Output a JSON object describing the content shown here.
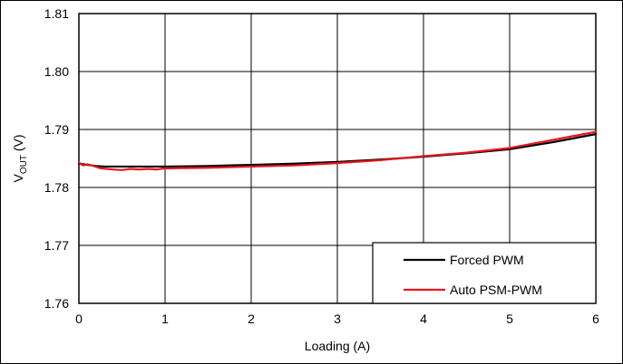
{
  "chart_data": {
    "type": "line",
    "xlabel": "Loading (A)",
    "ylabel": {
      "main": "V",
      "sub": "OUT",
      "unit": " (V)"
    },
    "xlim": [
      0,
      6
    ],
    "ylim": [
      1.76,
      1.81
    ],
    "x_ticks": [
      "0",
      "1",
      "2",
      "3",
      "4",
      "5",
      "6"
    ],
    "y_ticks": [
      "1.76",
      "1.77",
      "1.78",
      "1.79",
      "1.80",
      "1.81"
    ],
    "grid": true,
    "legend_position": "bottom-right",
    "series": [
      {
        "name": "Forced PWM",
        "color": "#000000",
        "x": [
          0,
          0.1,
          0.2,
          0.3,
          0.5,
          0.7,
          1.0,
          1.5,
          2.0,
          2.5,
          3.0,
          3.5,
          4.0,
          4.5,
          5.0,
          5.5,
          6.0
        ],
        "y": [
          1.7841,
          1.7839,
          1.7837,
          1.7836,
          1.7836,
          1.7836,
          1.7836,
          1.7837,
          1.7839,
          1.7841,
          1.7844,
          1.7848,
          1.7853,
          1.7859,
          1.7866,
          1.7878,
          1.7892
        ]
      },
      {
        "name": "Auto PSM-PWM",
        "color": "#e8141c",
        "x": [
          0,
          0.05,
          0.1,
          0.15,
          0.25,
          0.4,
          0.5,
          0.6,
          0.7,
          0.8,
          0.9,
          1.0,
          1.5,
          2.0,
          2.5,
          3.0,
          3.5,
          4.0,
          4.5,
          5.0,
          5.5,
          6.0
        ],
        "y": [
          1.7843,
          1.7838,
          1.784,
          1.7838,
          1.7833,
          1.7831,
          1.783,
          1.7832,
          1.7831,
          1.7832,
          1.7831,
          1.7833,
          1.7834,
          1.7836,
          1.7838,
          1.7842,
          1.7847,
          1.7854,
          1.786,
          1.7868,
          1.7882,
          1.7896
        ]
      }
    ]
  }
}
